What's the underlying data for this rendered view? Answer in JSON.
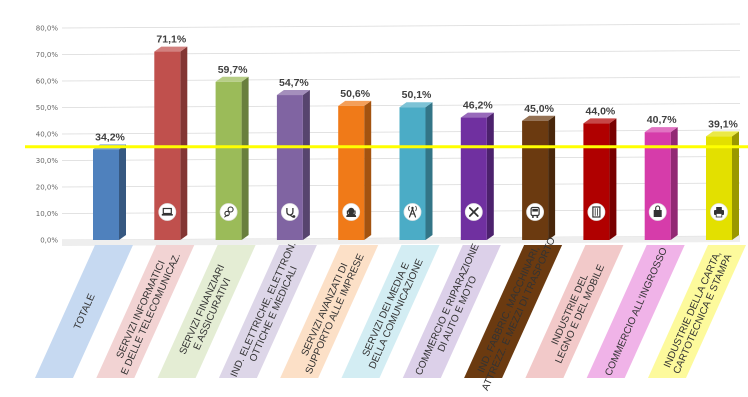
{
  "chart_data": {
    "type": "bar",
    "categories": [
      "TOTALE",
      "SERVIZI INFORMATICI E DELLE TELECOMUNICAZ.",
      "SERVIZI FINANZIARI E ASSICURATIVI",
      "IND. ELETTRICHE, ELETTRON. OTTICHE E MEDICALI",
      "SERVIZI AVANZATI DI SUPPORTO ALLE IMPRESE",
      "SERVIZI DEI MEDIA E DELLA COMUNICAZIONE",
      "COMMERCIO E RIPARAZIONE DI AUTO E MOTO",
      "IND. FABBRIC. MACCHINARI, ATTREZZ. E MEZZI DI TRASPORTO",
      "INDUSTRIE DEL LEGNO E DEL MOBILE",
      "COMMERCIO ALL'INGROSSO",
      "INDUSTRIE DELLA CARTA, CARTOTECNICA E STAMPA"
    ],
    "category_lines": [
      [
        "TOTALE"
      ],
      [
        "SERVIZI INFORMATICI",
        "E DELLE TELECOMUNICAZ."
      ],
      [
        "SERVIZI FINANZIARI",
        "E ASSICURATIVI"
      ],
      [
        "IND. ELETTRICHE, ELETTRON.",
        "OTTICHE E MEDICALI"
      ],
      [
        "SERVIZI AVANZATI DI",
        "SUPPORTO ALLE IMPRESE"
      ],
      [
        "SERVIZI DEI MEDIA E",
        "DELLA COMUNICAZIONE"
      ],
      [
        "COMMERCIO E RIPARAZIONE",
        "DI AUTO E MOTO"
      ],
      [
        "IND. FABBRIC. MACCHINARI,",
        "ATTREZZ. E MEZZI DI TRASPORTO"
      ],
      [
        "INDUSTRIE DEL",
        "LEGNO E DEL MOBILE"
      ],
      [
        "COMMERCIO ALL'INGROSSO"
      ],
      [
        "INDUSTRIE DELLA CARTA,",
        "CARTOTECNICA E STAMPA"
      ]
    ],
    "values": [
      34.2,
      71.1,
      59.7,
      54.7,
      50.6,
      50.1,
      46.2,
      45.0,
      44.0,
      40.7,
      39.1
    ],
    "value_labels": [
      "34,2%",
      "71,1%",
      "59,7%",
      "54,7%",
      "50,6%",
      "50,1%",
      "46,2%",
      "45,0%",
      "44,0%",
      "40,7%",
      "39,1%"
    ],
    "yticks": [
      0,
      10,
      20,
      30,
      40,
      50,
      60,
      70,
      80
    ],
    "ytick_labels": [
      "0,0%",
      "10,0%",
      "20,0%",
      "30,0%",
      "40,0%",
      "50,0%",
      "60,0%",
      "70,0%",
      "80,0%"
    ],
    "ylim": [
      0,
      80
    ],
    "reference_line": 35.2,
    "grid": true,
    "legend": "none",
    "title": "",
    "xlabel": "",
    "ylabel": "",
    "colors": {
      "bars": [
        "#4f81bd",
        "#c0504d",
        "#9bbb59",
        "#8064a2",
        "#f07a18",
        "#4bacc6",
        "#7030a0",
        "#6b3a10",
        "#b00000",
        "#d63caa",
        "#e3e000"
      ],
      "label_fills": [
        "#c6d9f1",
        "#f2d3d3",
        "#e4edd4",
        "#ddd6e8",
        "#fce0c7",
        "#d3edf3",
        "#dcd0e9",
        "#6b3a10",
        "#f2c9c9",
        "#f0b3e8",
        "#fdfa9c"
      ],
      "label_text": [
        "#333333",
        "#333333",
        "#333333",
        "#333333",
        "#333333",
        "#333333",
        "#333333",
        "#ffffff",
        "#333333",
        "#333333",
        "#333333"
      ],
      "reference_line": "#ffff00",
      "grid": "#d9d9d9"
    },
    "icons": [
      null,
      "laptop-icon",
      "finance-icon",
      "stethoscope-icon",
      "support-agent-icon",
      "antenna-icon",
      "tools-icon",
      "bus-icon",
      "furniture-icon",
      "shopping-bag-icon",
      "printer-icon"
    ]
  }
}
